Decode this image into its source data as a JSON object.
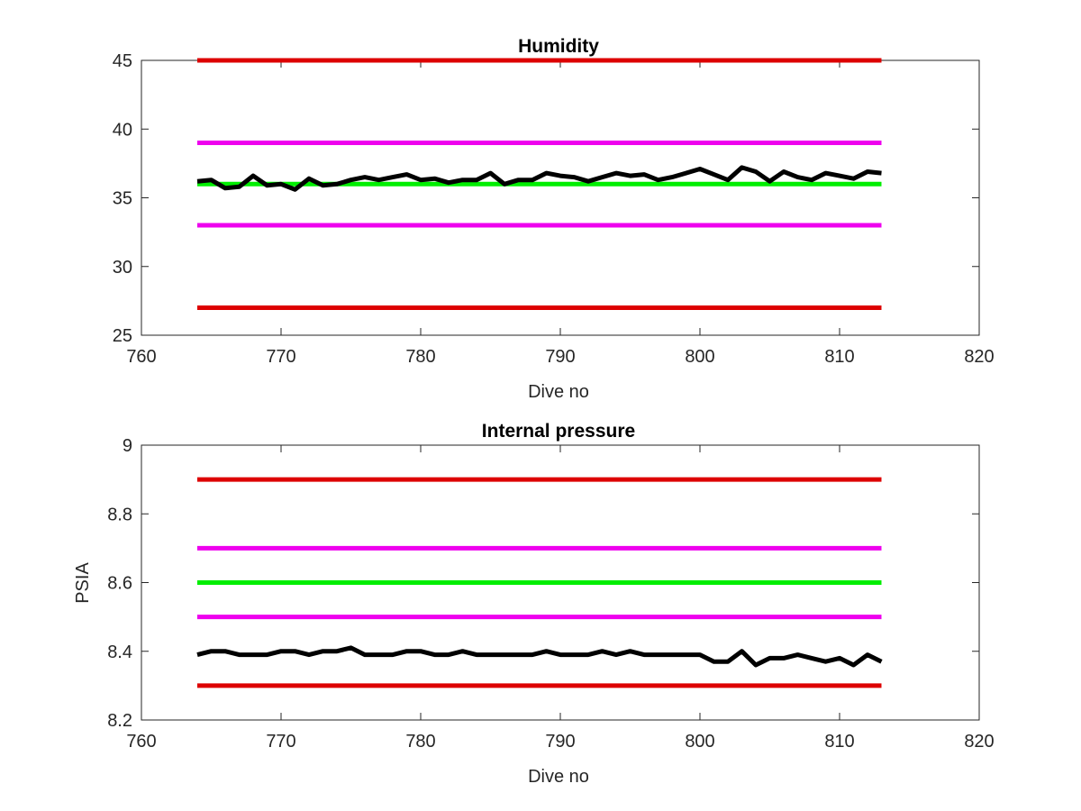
{
  "chart_data": [
    {
      "type": "line",
      "title": "Humidity",
      "xlabel": "Dive no",
      "ylabel": "",
      "xlim": [
        760,
        820
      ],
      "ylim": [
        25,
        45
      ],
      "xticks": [
        "760",
        "770",
        "780",
        "790",
        "800",
        "810",
        "820"
      ],
      "yticks": [
        "25",
        "30",
        "35",
        "40",
        "45"
      ],
      "grid": false,
      "series": [
        {
          "color": "#dd0000",
          "x": [
            764,
            813
          ],
          "values": [
            45,
            45
          ]
        },
        {
          "color": "#ee00ee",
          "x": [
            764,
            813
          ],
          "values": [
            39,
            39
          ]
        },
        {
          "color": "#00ee00",
          "x": [
            764,
            813
          ],
          "values": [
            36,
            36
          ]
        },
        {
          "color": "#ee00ee",
          "x": [
            764,
            813
          ],
          "values": [
            33,
            33
          ]
        },
        {
          "color": "#dd0000",
          "x": [
            764,
            813
          ],
          "values": [
            27,
            27
          ]
        },
        {
          "color": "#000000",
          "x": [
            764,
            765,
            766,
            767,
            768,
            769,
            770,
            771,
            772,
            773,
            774,
            775,
            776,
            777,
            778,
            779,
            780,
            781,
            782,
            783,
            784,
            785,
            786,
            787,
            788,
            789,
            790,
            791,
            792,
            793,
            794,
            795,
            796,
            797,
            798,
            799,
            800,
            801,
            802,
            803,
            804,
            805,
            806,
            807,
            808,
            809,
            810,
            811,
            812,
            813
          ],
          "values": [
            36.2,
            36.3,
            35.7,
            35.8,
            36.6,
            35.9,
            36.0,
            35.6,
            36.4,
            35.9,
            36.0,
            36.3,
            36.5,
            36.3,
            36.5,
            36.7,
            36.3,
            36.4,
            36.1,
            36.3,
            36.3,
            36.8,
            36.0,
            36.3,
            36.3,
            36.8,
            36.6,
            36.5,
            36.2,
            36.5,
            36.8,
            36.6,
            36.7,
            36.3,
            36.5,
            36.8,
            37.1,
            36.7,
            36.3,
            37.2,
            36.9,
            36.2,
            36.9,
            36.5,
            36.3,
            36.8,
            36.6,
            36.4,
            36.9,
            36.8
          ]
        }
      ]
    },
    {
      "type": "line",
      "title": "Internal pressure",
      "xlabel": "Dive no",
      "ylabel": "PSIA",
      "xlim": [
        760,
        820
      ],
      "ylim": [
        8.2,
        9
      ],
      "xticks": [
        "760",
        "770",
        "780",
        "790",
        "800",
        "810",
        "820"
      ],
      "yticks": [
        "8.2",
        "8.4",
        "8.6",
        "8.8",
        "9"
      ],
      "grid": false,
      "series": [
        {
          "color": "#dd0000",
          "x": [
            764,
            813
          ],
          "values": [
            8.9,
            8.9
          ]
        },
        {
          "color": "#ee00ee",
          "x": [
            764,
            813
          ],
          "values": [
            8.7,
            8.7
          ]
        },
        {
          "color": "#00ee00",
          "x": [
            764,
            813
          ],
          "values": [
            8.6,
            8.6
          ]
        },
        {
          "color": "#ee00ee",
          "x": [
            764,
            813
          ],
          "values": [
            8.5,
            8.5
          ]
        },
        {
          "color": "#dd0000",
          "x": [
            764,
            813
          ],
          "values": [
            8.3,
            8.3
          ]
        },
        {
          "color": "#000000",
          "x": [
            764,
            765,
            766,
            767,
            768,
            769,
            770,
            771,
            772,
            773,
            774,
            775,
            776,
            777,
            778,
            779,
            780,
            781,
            782,
            783,
            784,
            785,
            786,
            787,
            788,
            789,
            790,
            791,
            792,
            793,
            794,
            795,
            796,
            797,
            798,
            799,
            800,
            801,
            802,
            803,
            804,
            805,
            806,
            807,
            808,
            809,
            810,
            811,
            812,
            813
          ],
          "values": [
            8.39,
            8.4,
            8.4,
            8.39,
            8.39,
            8.39,
            8.4,
            8.4,
            8.39,
            8.4,
            8.4,
            8.41,
            8.39,
            8.39,
            8.39,
            8.4,
            8.4,
            8.39,
            8.39,
            8.4,
            8.39,
            8.39,
            8.39,
            8.39,
            8.39,
            8.4,
            8.39,
            8.39,
            8.39,
            8.4,
            8.39,
            8.4,
            8.39,
            8.39,
            8.39,
            8.39,
            8.39,
            8.37,
            8.37,
            8.4,
            8.36,
            8.38,
            8.38,
            8.39,
            8.38,
            8.37,
            8.38,
            8.36,
            8.39,
            8.37
          ]
        }
      ]
    }
  ]
}
